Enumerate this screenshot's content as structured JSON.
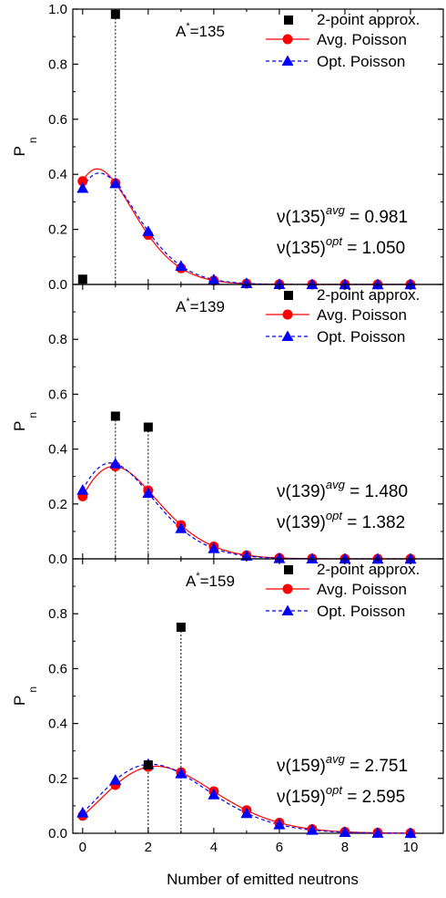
{
  "chart_data": [
    {
      "type": "scatter",
      "xlabel": "",
      "ylabel": "P",
      "ylabel_subscript": "n",
      "xlim": [
        -0.3,
        11
      ],
      "ylim": [
        0,
        1.0
      ],
      "xticks": [
        "0",
        "2",
        "4",
        "6",
        "8",
        "10"
      ],
      "yticks": [
        "0.0",
        "0.2",
        "0.4",
        "0.6",
        "0.8",
        "1.0"
      ],
      "annotation": {
        "base": "A",
        "sup": "*",
        "tail": "=135"
      },
      "nu_avg": {
        "base": "ν(135)",
        "sup": "avg",
        "tail": " = 0.981"
      },
      "nu_opt": {
        "base": "ν(135)",
        "sup": "opt",
        "tail": " = 1.050"
      },
      "legend": [
        "2-point approx.",
        "Avg. Poisson",
        "Opt. Poisson"
      ],
      "lambda_avg": 0.981,
      "lambda_opt": 1.05,
      "series": [
        {
          "name": "2-point approx.",
          "x": [
            0,
            1
          ],
          "y": [
            0.019,
            0.981
          ],
          "color": "#000000",
          "marker": "square",
          "dropline": [
            1
          ]
        },
        {
          "name": "Avg. Poisson",
          "x": [
            0,
            1,
            2,
            3,
            4,
            5,
            6,
            7,
            8,
            9,
            10
          ],
          "y": [
            0.375,
            0.368,
            0.18,
            0.059,
            0.014,
            0.003,
            0.0005,
            0.0001,
            0,
            0,
            0
          ],
          "color": "#ff0000",
          "marker": "circle"
        },
        {
          "name": "Opt. Poisson",
          "x": [
            0,
            1,
            2,
            3,
            4,
            5,
            6,
            7,
            8,
            9,
            10
          ],
          "y": [
            0.35,
            0.367,
            0.193,
            0.067,
            0.018,
            0.004,
            0.0007,
            0.0001,
            0,
            0,
            0
          ],
          "color": "#0000ff",
          "marker": "triangle"
        }
      ]
    },
    {
      "type": "scatter",
      "xlabel": "",
      "ylabel": "P",
      "ylabel_subscript": "n",
      "xlim": [
        -0.3,
        11
      ],
      "ylim": [
        0,
        1.0
      ],
      "xticks": [
        "0",
        "2",
        "4",
        "6",
        "8",
        "10"
      ],
      "yticks": [
        "0.0",
        "0.2",
        "0.4",
        "0.6",
        "0.8"
      ],
      "annotation": {
        "base": "A",
        "sup": "*",
        "tail": "=139"
      },
      "nu_avg": {
        "base": "ν(139)",
        "sup": "avg",
        "tail": " = 1.480"
      },
      "nu_opt": {
        "base": "ν(139)",
        "sup": "opt",
        "tail": " = 1.382"
      },
      "legend": [
        "2-point approx.",
        "Avg. Poisson",
        "Opt. Poisson"
      ],
      "lambda_avg": 1.48,
      "lambda_opt": 1.382,
      "series": [
        {
          "name": "2-point approx.",
          "x": [
            1,
            2
          ],
          "y": [
            0.52,
            0.48
          ],
          "color": "#000000",
          "marker": "square",
          "dropline": [
            1,
            2
          ]
        },
        {
          "name": "Avg. Poisson",
          "x": [
            0,
            1,
            2,
            3,
            4,
            5,
            6,
            7,
            8,
            9,
            10
          ],
          "y": [
            0.228,
            0.337,
            0.249,
            0.123,
            0.045,
            0.013,
            0.003,
            0.0007,
            0.0001,
            0,
            0
          ],
          "color": "#ff0000",
          "marker": "circle"
        },
        {
          "name": "Opt. Poisson",
          "x": [
            0,
            1,
            2,
            3,
            4,
            5,
            6,
            7,
            8,
            9,
            10
          ],
          "y": [
            0.251,
            0.347,
            0.24,
            0.111,
            0.038,
            0.011,
            0.002,
            0.0005,
            0.0001,
            0,
            0
          ],
          "color": "#0000ff",
          "marker": "triangle"
        }
      ]
    },
    {
      "type": "scatter",
      "xlabel": "Number of emitted neutrons",
      "ylabel": "P",
      "ylabel_subscript": "n",
      "xlim": [
        -0.3,
        11
      ],
      "ylim": [
        0,
        1.0
      ],
      "xticks": [
        "0",
        "2",
        "4",
        "6",
        "8",
        "10"
      ],
      "yticks": [
        "0.0",
        "0.2",
        "0.4",
        "0.6",
        "0.8"
      ],
      "annotation": {
        "base": "A",
        "sup": "*",
        "tail": "=159"
      },
      "nu_avg": {
        "base": "ν(159)",
        "sup": "avg",
        "tail": " = 2.751"
      },
      "nu_opt": {
        "base": "ν(159)",
        "sup": "opt",
        "tail": " = 2.595"
      },
      "legend": [
        "2-point approx.",
        "Avg. Poisson",
        "Opt. Poisson"
      ],
      "lambda_avg": 2.751,
      "lambda_opt": 2.595,
      "series": [
        {
          "name": "2-point approx.",
          "x": [
            2,
            3
          ],
          "y": [
            0.249,
            0.751
          ],
          "color": "#000000",
          "marker": "square",
          "dropline": [
            2,
            3
          ]
        },
        {
          "name": "Avg. Poisson",
          "x": [
            0,
            1,
            2,
            3,
            4,
            5,
            6,
            7,
            8,
            9,
            10
          ],
          "y": [
            0.064,
            0.176,
            0.242,
            0.222,
            0.153,
            0.084,
            0.038,
            0.015,
            0.005,
            0.002,
            0.0004
          ],
          "color": "#ff0000",
          "marker": "circle"
        },
        {
          "name": "Opt. Poisson",
          "x": [
            0,
            1,
            2,
            3,
            4,
            5,
            6,
            7,
            8,
            9,
            10
          ],
          "y": [
            0.075,
            0.194,
            0.252,
            0.218,
            0.141,
            0.073,
            0.032,
            0.012,
            0.004,
            0.001,
            0.0003
          ],
          "color": "#0000ff",
          "marker": "triangle"
        }
      ]
    }
  ]
}
